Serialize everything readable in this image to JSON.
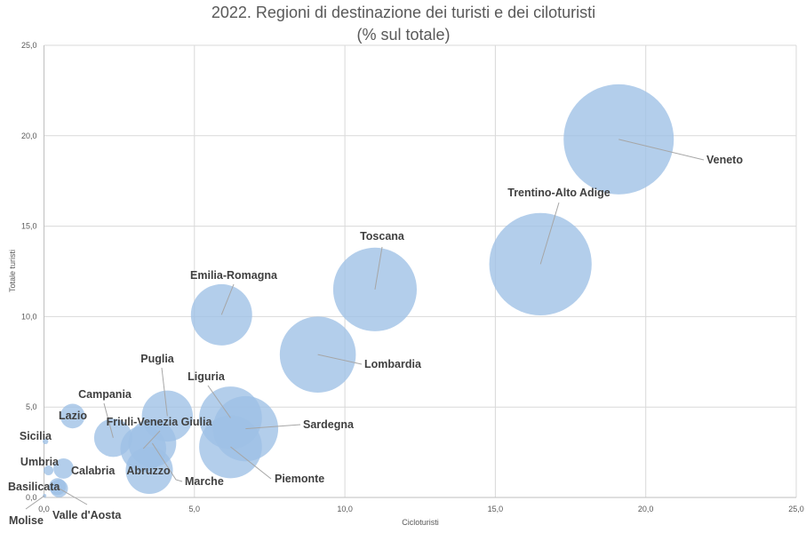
{
  "chart_data": {
    "type": "bubble",
    "title": "2022. Regioni di destinazione dei turisti e dei ciloturisti",
    "subtitle": "(% sul totale)",
    "xlabel": "Cicloturisti",
    "ylabel": "Totale turisti",
    "xlim": [
      0,
      25
    ],
    "ylim": [
      0,
      25
    ],
    "xticks": [
      "0,0",
      "5,0",
      "10,0",
      "15,0",
      "20,0",
      "25,0"
    ],
    "yticks": [
      "0,0",
      "5,0",
      "10,0",
      "15,0",
      "20,0",
      "25,0"
    ],
    "grid": true,
    "bubble_size": "proportional to Cicloturisti",
    "color": "#9dc0e6",
    "points": [
      {
        "name": "Veneto",
        "x": 19.1,
        "y": 19.8
      },
      {
        "name": "Trentino-Alto Adige",
        "x": 16.5,
        "y": 12.9
      },
      {
        "name": "Toscana",
        "x": 11.0,
        "y": 11.5
      },
      {
        "name": "Lombardia",
        "x": 9.1,
        "y": 7.9
      },
      {
        "name": "Emilia-Romagna",
        "x": 5.9,
        "y": 10.1
      },
      {
        "name": "Sardegna",
        "x": 6.7,
        "y": 3.8
      },
      {
        "name": "Liguria",
        "x": 6.2,
        "y": 4.4
      },
      {
        "name": "Piemonte",
        "x": 6.2,
        "y": 2.8
      },
      {
        "name": "Puglia",
        "x": 4.1,
        "y": 4.5
      },
      {
        "name": "Marche",
        "x": 3.6,
        "y": 3.0
      },
      {
        "name": "Abruzzo",
        "x": 3.5,
        "y": 1.5
      },
      {
        "name": "Friuli-Venezia Giulia",
        "x": 3.3,
        "y": 2.7
      },
      {
        "name": "Campania",
        "x": 2.3,
        "y": 3.3
      },
      {
        "name": "Lazio",
        "x": 0.95,
        "y": 4.5
      },
      {
        "name": "Calabria",
        "x": 0.65,
        "y": 1.6
      },
      {
        "name": "Basilicata",
        "x": 0.45,
        "y": 0.6
      },
      {
        "name": "Valle d'Aosta",
        "x": 0.5,
        "y": 0.5
      },
      {
        "name": "Umbria",
        "x": 0.15,
        "y": 1.5
      },
      {
        "name": "Sicilia",
        "x": 0.05,
        "y": 3.1
      },
      {
        "name": "Molise",
        "x": 0.02,
        "y": 0.1
      }
    ]
  }
}
